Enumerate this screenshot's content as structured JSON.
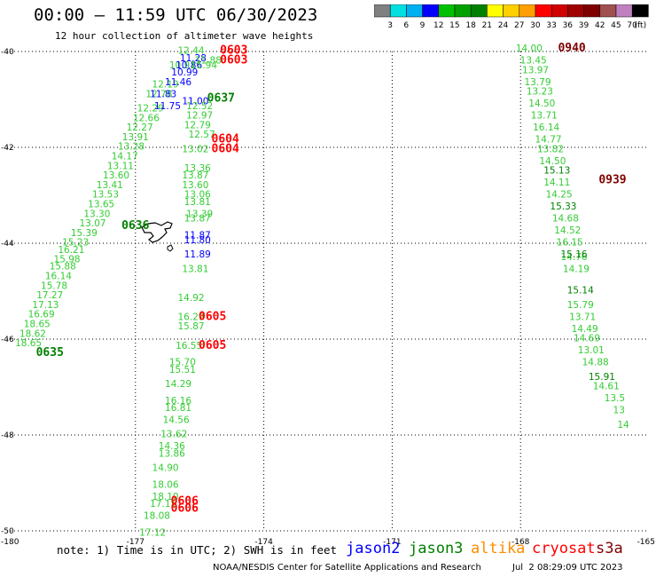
{
  "title": "00:00 – 11:59 UTC 06/30/2023",
  "subtitle": "12 hour collection of altimeter wave heights",
  "colorbar": {
    "ticks": [
      "3",
      "6",
      "9",
      "12",
      "15",
      "18",
      "21",
      "24",
      "27",
      "30",
      "33",
      "36",
      "39",
      "42",
      "45",
      "70",
      "(ft)"
    ],
    "colors": [
      "#808080",
      "#00e0e0",
      "#00b0f0",
      "#0000ff",
      "#00c000",
      "#00a000",
      "#008000",
      "#ffff00",
      "#ffd000",
      "#ffa000",
      "#ff0000",
      "#d00000",
      "#a00000",
      "#800000",
      "#a05050",
      "#c080c0",
      "#000000"
    ]
  },
  "axes": {
    "lon_labels": [
      "-180",
      "-177",
      "-174",
      "-171",
      "-168",
      "-165"
    ],
    "lat_labels": [
      "-40",
      "-42",
      "-44",
      "-46",
      "-48",
      "-50"
    ]
  },
  "note": "note: 1) Time is in UTC; 2) SWH is in feet",
  "legend": [
    {
      "name": "jason2",
      "color": "#0000ff"
    },
    {
      "name": "jason3",
      "color": "#008000"
    },
    {
      "name": "altika",
      "color": "#ff8c00"
    },
    {
      "name": "cryosat",
      "color": "#ff0000"
    },
    {
      "name": "s3a",
      "color": "#800000"
    }
  ],
  "credit": "NOAA/NESDIS Center for Satellite Applications and Research",
  "credit_date": "Jul  2 08:29:09 UTC 2023",
  "chart_data": {
    "type": "scatter",
    "xlim": [
      -180,
      -165
    ],
    "ylim": [
      -50,
      -40
    ],
    "grid": true,
    "tracks": [
      {
        "satellite": "jason3",
        "color": "#33cc33",
        "points": [
          [
            -178.5,
            -44.2,
            "16.21"
          ],
          [
            -178.6,
            -44.4,
            "15.98"
          ],
          [
            -178.7,
            -44.55,
            "15.88"
          ],
          [
            -178.8,
            -44.75,
            "16.14"
          ],
          [
            -178.9,
            -44.95,
            "15.78"
          ],
          [
            -179.0,
            -45.15,
            "17.27"
          ],
          [
            -179.1,
            -45.35,
            "17.13"
          ],
          [
            -179.2,
            -45.55,
            "16.69"
          ],
          [
            -179.3,
            -45.75,
            "18.65"
          ],
          [
            -179.4,
            -45.95,
            "18.62"
          ],
          [
            -179.5,
            -46.15,
            "18.65"
          ],
          [
            -178.4,
            -44.05,
            "15.23"
          ],
          [
            -178.2,
            -43.85,
            "15.39"
          ],
          [
            -178.0,
            -43.65,
            "13.07"
          ],
          [
            -177.9,
            -43.45,
            "13.30"
          ],
          [
            -177.8,
            -43.25,
            "13.65"
          ],
          [
            -177.7,
            -43.05,
            "13.53"
          ],
          [
            -177.6,
            -42.85,
            "13.41"
          ],
          [
            -177.45,
            -42.65,
            "13.60"
          ],
          [
            -177.35,
            -42.45,
            "13.11"
          ],
          [
            -177.25,
            -42.25,
            "14.17"
          ],
          [
            -177.1,
            -42.05,
            "13.28"
          ],
          [
            -177.0,
            -41.85,
            "13.91"
          ],
          [
            -176.9,
            -41.65,
            "12.27"
          ],
          [
            -176.75,
            -41.45,
            "12.66"
          ],
          [
            -176.65,
            -41.25,
            "12.29"
          ],
          [
            -176.45,
            -40.95,
            "12.78"
          ],
          [
            -176.3,
            -40.75,
            "12.19"
          ],
          [
            -175.9,
            -40.35,
            "10.91"
          ],
          [
            -175.7,
            -40.05,
            "12.44"
          ]
        ]
      },
      {
        "satellite": "jason2",
        "color": "#0000ff",
        "points": [
          [
            -176.0,
            -40.7,
            "11.46"
          ],
          [
            -175.85,
            -40.5,
            "10.99"
          ],
          [
            -175.75,
            -40.35,
            "10.86"
          ],
          [
            -175.65,
            -40.2,
            "11.28"
          ],
          [
            -176.35,
            -40.95,
            "11.83"
          ],
          [
            -176.25,
            -41.2,
            "11.75"
          ],
          [
            -175.6,
            -41.1,
            "11.00"
          ]
        ]
      },
      {
        "satellite": "jason3",
        "color": "#33cc33",
        "points": [
          [
            -175.5,
            -41.4,
            "12.97"
          ],
          [
            -175.55,
            -41.6,
            "12.79"
          ],
          [
            -175.5,
            -41.2,
            "12.52"
          ],
          [
            -175.45,
            -41.8,
            "12.57"
          ],
          [
            -175.6,
            -42.1,
            "13.02"
          ],
          [
            -175.55,
            -42.5,
            "13.36"
          ],
          [
            -175.6,
            -42.65,
            "13.87"
          ],
          [
            -175.6,
            -42.85,
            "13.60"
          ],
          [
            -175.55,
            -43.05,
            "13.06"
          ],
          [
            -175.55,
            -43.2,
            "13.81"
          ],
          [
            -175.5,
            -43.45,
            "13.39"
          ],
          [
            -175.55,
            -43.55,
            "13.87"
          ],
          [
            -175.6,
            -44.6,
            "13.81"
          ],
          [
            -175.7,
            -45.2,
            "14.92"
          ],
          [
            -175.7,
            -45.6,
            "16.29"
          ],
          [
            -175.7,
            -45.8,
            "15.87"
          ],
          [
            -175.75,
            -46.2,
            "16.55"
          ],
          [
            -175.9,
            -46.55,
            "15.70"
          ],
          [
            -175.9,
            -46.7,
            "15.51"
          ],
          [
            -176.0,
            -47.0,
            "14.29"
          ],
          [
            -176.0,
            -47.35,
            "16.16"
          ],
          [
            -176.0,
            -47.5,
            "16.81"
          ],
          [
            -176.05,
            -47.75,
            "14.56"
          ],
          [
            -176.1,
            -48.05,
            "13.62"
          ],
          [
            -176.15,
            -48.3,
            "14.36"
          ],
          [
            -176.15,
            -48.45,
            "13.86"
          ],
          [
            -176.3,
            -48.75,
            "14.90"
          ],
          [
            -176.3,
            -49.1,
            "18.06"
          ],
          [
            -176.3,
            -49.35,
            "18.10"
          ],
          [
            -176.35,
            -49.5,
            "17.11"
          ],
          [
            -176.5,
            -49.75,
            "18.08"
          ],
          [
            -176.6,
            -50.1,
            "17.12"
          ]
        ]
      },
      {
        "satellite": "jason2",
        "color": "#0000ff",
        "points": [
          [
            -175.55,
            -43.9,
            "11.87"
          ],
          [
            -175.55,
            -44.0,
            "11.80"
          ],
          [
            -175.55,
            -44.3,
            "11.89"
          ]
        ]
      },
      {
        "satellite": "jason3",
        "color": "#33cc33",
        "points": [
          [
            -167.8,
            -40.0,
            "14.00"
          ],
          [
            -167.7,
            -40.25,
            "13.45"
          ],
          [
            -167.65,
            -40.45,
            "13.97"
          ],
          [
            -167.6,
            -40.7,
            "13.79"
          ],
          [
            -167.55,
            -40.9,
            "13.23"
          ],
          [
            -167.5,
            -41.15,
            "14.50"
          ],
          [
            -167.45,
            -41.4,
            "13.71"
          ],
          [
            -167.4,
            -41.65,
            "16.14"
          ],
          [
            -167.35,
            -41.9,
            "14.77"
          ],
          [
            -167.3,
            -42.1,
            "13.82"
          ],
          [
            -167.25,
            -42.35,
            "14.50"
          ],
          [
            -167.15,
            -42.8,
            "14.11"
          ],
          [
            -167.1,
            -43.05,
            "14.25"
          ],
          [
            -166.95,
            -43.55,
            "14.68"
          ],
          [
            -166.9,
            -43.8,
            "14.52"
          ],
          [
            -166.85,
            -44.05,
            "16.15"
          ],
          [
            -166.75,
            -44.35,
            "14.76"
          ],
          [
            -166.7,
            -44.6,
            "14.19"
          ],
          [
            -166.6,
            -45.35,
            "15.79"
          ],
          [
            -166.55,
            -45.6,
            "13.71"
          ],
          [
            -166.5,
            -45.85,
            "14.49"
          ],
          [
            -166.45,
            -46.05,
            "14.69"
          ],
          [
            -166.35,
            -46.3,
            "13.01"
          ],
          [
            -166.25,
            -46.55,
            "14.88"
          ],
          [
            -166.0,
            -47.05,
            "14.61"
          ],
          [
            -165.8,
            -47.3,
            "13.5"
          ],
          [
            -165.7,
            -47.55,
            "13"
          ],
          [
            -165.6,
            -47.85,
            "14"
          ]
        ]
      },
      {
        "satellite": "jason3",
        "color": "#008000",
        "points": [
          [
            -167.15,
            -42.55,
            "15.13"
          ],
          [
            -167.0,
            -43.3,
            "15.33"
          ],
          [
            -166.75,
            -44.3,
            "15.16"
          ],
          [
            -166.6,
            -45.05,
            "15.14"
          ],
          [
            -166.1,
            -46.85,
            "15.91"
          ]
        ]
      },
      {
        "satellite": "jason3",
        "color": "#33cc33",
        "points": [
          [
            -175.4,
            -40.35,
            "11.94"
          ],
          [
            -175.3,
            -40.25,
            "11.88"
          ]
        ]
      }
    ],
    "pass_labels": [
      {
        "text": "0603",
        "lon": -174.7,
        "lat": -40.05,
        "color": "#ff0000"
      },
      {
        "text": "0603",
        "lon": -174.7,
        "lat": -40.25,
        "color": "#ff0000"
      },
      {
        "text": "0637",
        "lon": -175.0,
        "lat": -41.05,
        "color": "#008000"
      },
      {
        "text": "0604",
        "lon": -174.9,
        "lat": -41.9,
        "color": "#ff0000"
      },
      {
        "text": "0604",
        "lon": -174.9,
        "lat": -42.1,
        "color": "#ff0000"
      },
      {
        "text": "0636",
        "lon": -177.0,
        "lat": -43.7,
        "color": "#008000"
      },
      {
        "text": "0605",
        "lon": -175.2,
        "lat": -45.6,
        "color": "#ff0000"
      },
      {
        "text": "0605",
        "lon": -175.2,
        "lat": -46.2,
        "color": "#ff0000"
      },
      {
        "text": "0606",
        "lon": -175.85,
        "lat": -49.45,
        "color": "#ff0000"
      },
      {
        "text": "0606",
        "lon": -175.85,
        "lat": -49.6,
        "color": "#ff0000"
      },
      {
        "text": "0635",
        "lon": -179.0,
        "lat": -46.35,
        "color": "#008000"
      },
      {
        "text": "0940",
        "lon": -166.8,
        "lat": -40.0,
        "color": "#800000"
      },
      {
        "text": "0939",
        "lon": -165.85,
        "lat": -42.75,
        "color": "#800000"
      }
    ]
  }
}
